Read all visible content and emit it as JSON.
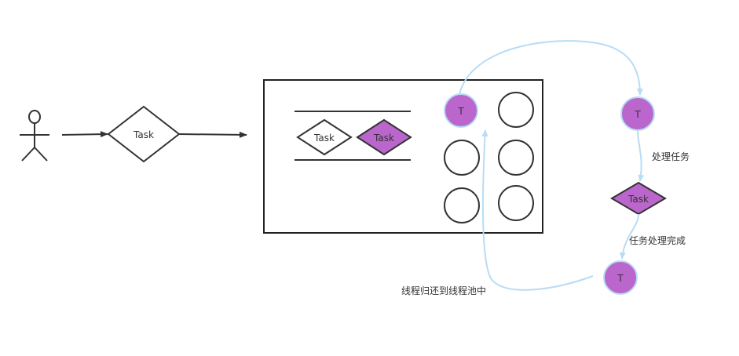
{
  "diagram": {
    "submit_task_label": "Task",
    "queue_task_1_label": "Task",
    "queue_task_2_label": "Task",
    "thread_label": "T",
    "processing_thread_label": "T",
    "processing_task_label": "Task",
    "finished_thread_label": "T",
    "step_process_label": "处理任务",
    "step_done_label": "任务处理完成",
    "step_return_label": "线程归还到线程池中",
    "colors": {
      "stroke": "#333333",
      "accent_purple": "#bb66cc",
      "flow_line": "#b7dcf5"
    }
  }
}
